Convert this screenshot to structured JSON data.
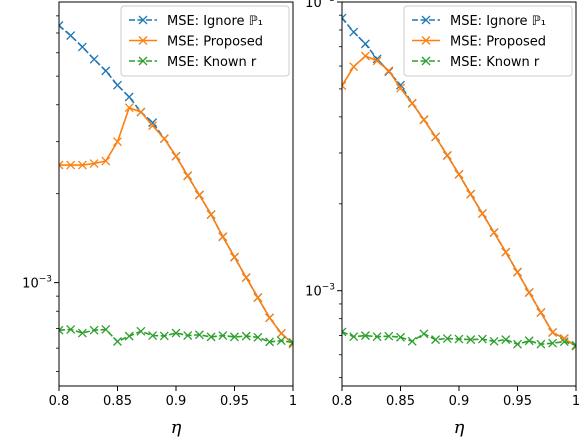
{
  "chart_data": [
    {
      "type": "line",
      "xscale": "linear",
      "yscale": "log",
      "xlim": [
        0.8,
        1.0
      ],
      "ylim_decades": [
        -3.35,
        -2.05
      ],
      "xticks": [
        0.8,
        0.85,
        0.9,
        0.95,
        1.0
      ],
      "xtick_labels": [
        "0.8",
        "0.85",
        "0.9",
        "0.95",
        "1"
      ],
      "ytick_label": "10−3",
      "xlabel": "η",
      "legend": {
        "placement": "top-right"
      },
      "series": [
        {
          "name": "MSE: Ignore ℙ₁",
          "color": "#1f77b4",
          "linestyle": "dashed",
          "marker": "x",
          "x": [
            0.8,
            0.81,
            0.82,
            0.83,
            0.84,
            0.85,
            0.86,
            0.87,
            0.88,
            0.89,
            0.9,
            0.91,
            0.92,
            0.93,
            0.94,
            0.95,
            0.96,
            0.97,
            0.98,
            0.99,
            1.0
          ],
          "y": [
            0.00742,
            0.00686,
            0.00628,
            0.0057,
            0.00521,
            0.00466,
            0.00425,
            0.00378,
            0.00348,
            0.00307,
            0.00268,
            0.0023,
            0.00198,
            0.0017,
            0.00143,
            0.00122,
            0.00104,
            0.00089,
            0.00076,
            0.000673,
            0.00062
          ]
        },
        {
          "name": "MSE: Proposed",
          "color": "#ff7f0e",
          "linestyle": "solid",
          "marker": "x",
          "x": [
            0.8,
            0.81,
            0.82,
            0.83,
            0.84,
            0.85,
            0.86,
            0.87,
            0.88,
            0.89,
            0.9,
            0.91,
            0.92,
            0.93,
            0.94,
            0.95,
            0.96,
            0.97,
            0.98,
            0.99,
            1.0
          ],
          "y": [
            0.0025,
            0.0025,
            0.0025,
            0.00253,
            0.00258,
            0.003,
            0.00391,
            0.00378,
            0.0034,
            0.00307,
            0.00268,
            0.0023,
            0.00198,
            0.0017,
            0.00143,
            0.00122,
            0.00104,
            0.00089,
            0.00076,
            0.000673,
            0.00062
          ]
        },
        {
          "name": "MSE: Known r",
          "color": "#2ca02c",
          "linestyle": "dashed",
          "marker": "x",
          "x": [
            0.8,
            0.81,
            0.82,
            0.83,
            0.84,
            0.85,
            0.86,
            0.87,
            0.88,
            0.89,
            0.9,
            0.91,
            0.92,
            0.93,
            0.94,
            0.95,
            0.96,
            0.97,
            0.98,
            0.99,
            1.0
          ],
          "y": [
            0.00069,
            0.000694,
            0.000675,
            0.00069,
            0.000694,
            0.000632,
            0.000659,
            0.000684,
            0.000662,
            0.00066,
            0.000675,
            0.000662,
            0.000666,
            0.000655,
            0.000662,
            0.000655,
            0.000659,
            0.000653,
            0.00063,
            0.000636,
            0.000627
          ]
        }
      ]
    },
    {
      "type": "line",
      "xscale": "linear",
      "yscale": "log",
      "xlim": [
        0.8,
        1.0
      ],
      "ylim_decades": [
        -3.33,
        -2.0
      ],
      "xticks": [
        0.8,
        0.85,
        0.9,
        0.95,
        1.0
      ],
      "xtick_labels": [
        "0.8",
        "0.85",
        "0.9",
        "0.95",
        "1"
      ],
      "ytick_label": "10−3",
      "xlabel": "η",
      "legend": {
        "placement": "top-right"
      },
      "series": [
        {
          "name": "MSE: Ignore ℙ₁",
          "color": "#1f77b4",
          "linestyle": "dashed",
          "marker": "x",
          "x": [
            0.8,
            0.81,
            0.82,
            0.83,
            0.84,
            0.85,
            0.86,
            0.87,
            0.88,
            0.89,
            0.9,
            0.91,
            0.92,
            0.93,
            0.94,
            0.95,
            0.96,
            0.97,
            0.98,
            0.99,
            1.0
          ],
          "y": [
            0.0088,
            0.00787,
            0.00716,
            0.00635,
            0.00574,
            0.00515,
            0.00446,
            0.00391,
            0.00341,
            0.00294,
            0.00253,
            0.00216,
            0.00185,
            0.00159,
            0.00136,
            0.00116,
            0.000986,
            0.00084,
            0.000717,
            0.000683,
            0.000643
          ]
        },
        {
          "name": "MSE: Proposed",
          "color": "#ff7f0e",
          "linestyle": "solid",
          "marker": "x",
          "x": [
            0.8,
            0.81,
            0.82,
            0.83,
            0.84,
            0.85,
            0.86,
            0.87,
            0.88,
            0.89,
            0.9,
            0.91,
            0.92,
            0.93,
            0.94,
            0.95,
            0.96,
            0.97,
            0.98,
            0.99,
            1.0
          ],
          "y": [
            0.00513,
            0.00597,
            0.0065,
            0.00625,
            0.00578,
            0.00503,
            0.00446,
            0.00391,
            0.00341,
            0.00294,
            0.00253,
            0.00216,
            0.00185,
            0.00159,
            0.00136,
            0.00116,
            0.000986,
            0.00084,
            0.000717,
            0.000683,
            0.000643
          ]
        },
        {
          "name": "MSE: Known r",
          "color": "#2ca02c",
          "linestyle": "dashed",
          "marker": "x",
          "x": [
            0.8,
            0.81,
            0.82,
            0.83,
            0.84,
            0.85,
            0.86,
            0.87,
            0.88,
            0.89,
            0.9,
            0.91,
            0.92,
            0.93,
            0.94,
            0.95,
            0.96,
            0.97,
            0.98,
            0.99,
            1.0
          ],
          "y": [
            0.00072,
            0.000693,
            0.000699,
            0.000693,
            0.000696,
            0.00069,
            0.000668,
            0.000709,
            0.000677,
            0.000683,
            0.00068,
            0.000677,
            0.00068,
            0.000668,
            0.000677,
            0.000653,
            0.000671,
            0.000653,
            0.000658,
            0.000666,
            0.000647
          ]
        }
      ]
    }
  ]
}
